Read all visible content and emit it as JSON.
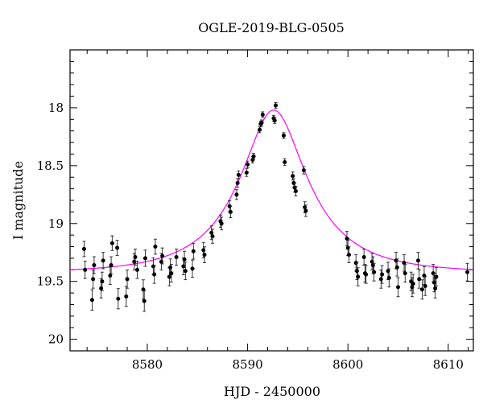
{
  "chart_data": {
    "type": "scatter",
    "title": "OGLE-2019-BLG-0505",
    "xlabel": "HJD - 2450000",
    "ylabel": "I magnitude",
    "xlim": [
      8572.3,
      8612.5
    ],
    "ylim": [
      20.1,
      17.5
    ],
    "y_inverted": true,
    "x_ticks": [
      8580,
      8590,
      8600,
      8610
    ],
    "y_ticks": [
      18,
      18.5,
      19,
      19.5,
      20
    ],
    "y_tick_labels": [
      "18",
      "18.5",
      "19",
      "19.5",
      "20"
    ],
    "grid": false,
    "model_color": "#ff00ff",
    "point_color": "#000000",
    "model": {
      "baseline": 19.425,
      "peak_mag": 18.02,
      "t0": 8592.6,
      "tE": 8.0,
      "u0": 0.42
    },
    "series": [
      {
        "x": [
          8573.7,
          8573.8,
          8574.5,
          8574.6,
          8574.7,
          8575.4,
          8575.5,
          8575.6,
          8576.3,
          8576.4,
          8576.5,
          8577.0,
          8577.1,
          8577.9,
          8578.0,
          8578.7,
          8578.8,
          8579.0,
          8579.6,
          8579.7,
          8579.8,
          8580.6,
          8580.7,
          8580.8,
          8581.4,
          8581.5,
          8582.2,
          8582.3,
          8582.4,
          8582.9,
          8583.6,
          8583.7,
          8583.8,
          8584.5,
          8584.6,
          8585.6,
          8585.7,
          8586.4,
          8586.5,
          8587.3,
          8587.4,
          8588.2,
          8588.3,
          8588.9,
          8589.0,
          8589.1,
          8589.9,
          8590.0,
          8590.5,
          8590.6,
          8591.2,
          8591.3,
          8591.4,
          8591.5,
          8592.6,
          8592.7,
          8592.8,
          8593.6,
          8593.7,
          8594.5,
          8594.6,
          8594.7,
          8594.8,
          8595.6,
          8595.7,
          8595.8,
          8599.9,
          8600.0,
          8600.1,
          8600.8,
          8600.9,
          8601.0,
          8601.6,
          8601.7,
          8601.8,
          8602.4,
          8602.5,
          8602.6,
          8603.3,
          8603.4,
          8604.0,
          8604.1,
          8604.8,
          8604.9,
          8605.0,
          8605.6,
          8605.7,
          8606.3,
          8606.4,
          8606.5,
          8607.0,
          8607.1,
          8607.4,
          8607.6,
          8607.7,
          8608.5,
          8608.6,
          8608.7,
          8608.8,
          8611.9
        ],
        "y": [
          19.22,
          19.4,
          19.66,
          19.48,
          19.36,
          19.56,
          19.5,
          19.32,
          19.45,
          19.36,
          19.17,
          19.21,
          19.65,
          19.63,
          19.48,
          19.33,
          19.29,
          19.4,
          19.57,
          19.67,
          19.3,
          19.37,
          19.44,
          19.2,
          19.33,
          19.28,
          19.46,
          19.38,
          19.43,
          19.29,
          19.37,
          19.31,
          19.41,
          19.39,
          19.24,
          19.23,
          19.27,
          19.08,
          19.11,
          18.98,
          19.0,
          18.85,
          18.9,
          18.75,
          18.65,
          18.58,
          18.56,
          18.49,
          18.45,
          18.42,
          18.19,
          18.14,
          18.13,
          18.06,
          18.09,
          18.11,
          17.98,
          18.24,
          18.47,
          18.59,
          18.65,
          18.69,
          18.72,
          18.54,
          18.86,
          18.89,
          19.13,
          19.21,
          19.27,
          19.34,
          19.41,
          19.46,
          19.29,
          19.43,
          19.44,
          19.33,
          19.36,
          19.42,
          19.48,
          19.44,
          19.41,
          19.47,
          19.32,
          19.38,
          19.55,
          19.34,
          19.43,
          19.5,
          19.55,
          19.52,
          19.32,
          19.48,
          19.57,
          19.45,
          19.54,
          19.43,
          19.51,
          19.56,
          19.46,
          19.42
        ]
      }
    ]
  }
}
